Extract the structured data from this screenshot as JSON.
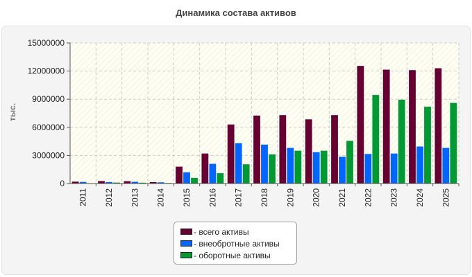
{
  "chart_data": {
    "type": "bar",
    "title": "Динамика состава активов",
    "ylabel": "тыс.",
    "xlabel": "",
    "categories": [
      "2011",
      "2012",
      "2013",
      "2014",
      "2015",
      "2016",
      "2017",
      "2018",
      "2019",
      "2020",
      "2021",
      "2022",
      "2023",
      "2024",
      "2025"
    ],
    "y_ticks": [
      "0",
      "3000000",
      "6000000",
      "9000000",
      "12000000",
      "15000000"
    ],
    "ylim": [
      0,
      15000000
    ],
    "grid": true,
    "legend_position": "bottom",
    "series": [
      {
        "name": "- всего активы",
        "color": "#660033",
        "values": [
          200000,
          260000,
          250000,
          150000,
          1800000,
          3200000,
          6300000,
          7250000,
          7300000,
          6850000,
          7300000,
          12550000,
          12150000,
          12100000,
          12300000
        ]
      },
      {
        "name": "- внеобротные активы",
        "color": "#0066ff",
        "values": [
          170000,
          150000,
          180000,
          130000,
          1200000,
          2100000,
          4300000,
          4150000,
          3800000,
          3350000,
          2850000,
          3150000,
          3200000,
          3950000,
          3800000
        ]
      },
      {
        "name": "- оборотные активы",
        "color": "#009933",
        "values": [
          40000,
          100000,
          90000,
          60000,
          600000,
          1100000,
          2050000,
          3100000,
          3500000,
          3500000,
          4550000,
          9450000,
          8950000,
          8200000,
          8600000
        ]
      }
    ]
  }
}
